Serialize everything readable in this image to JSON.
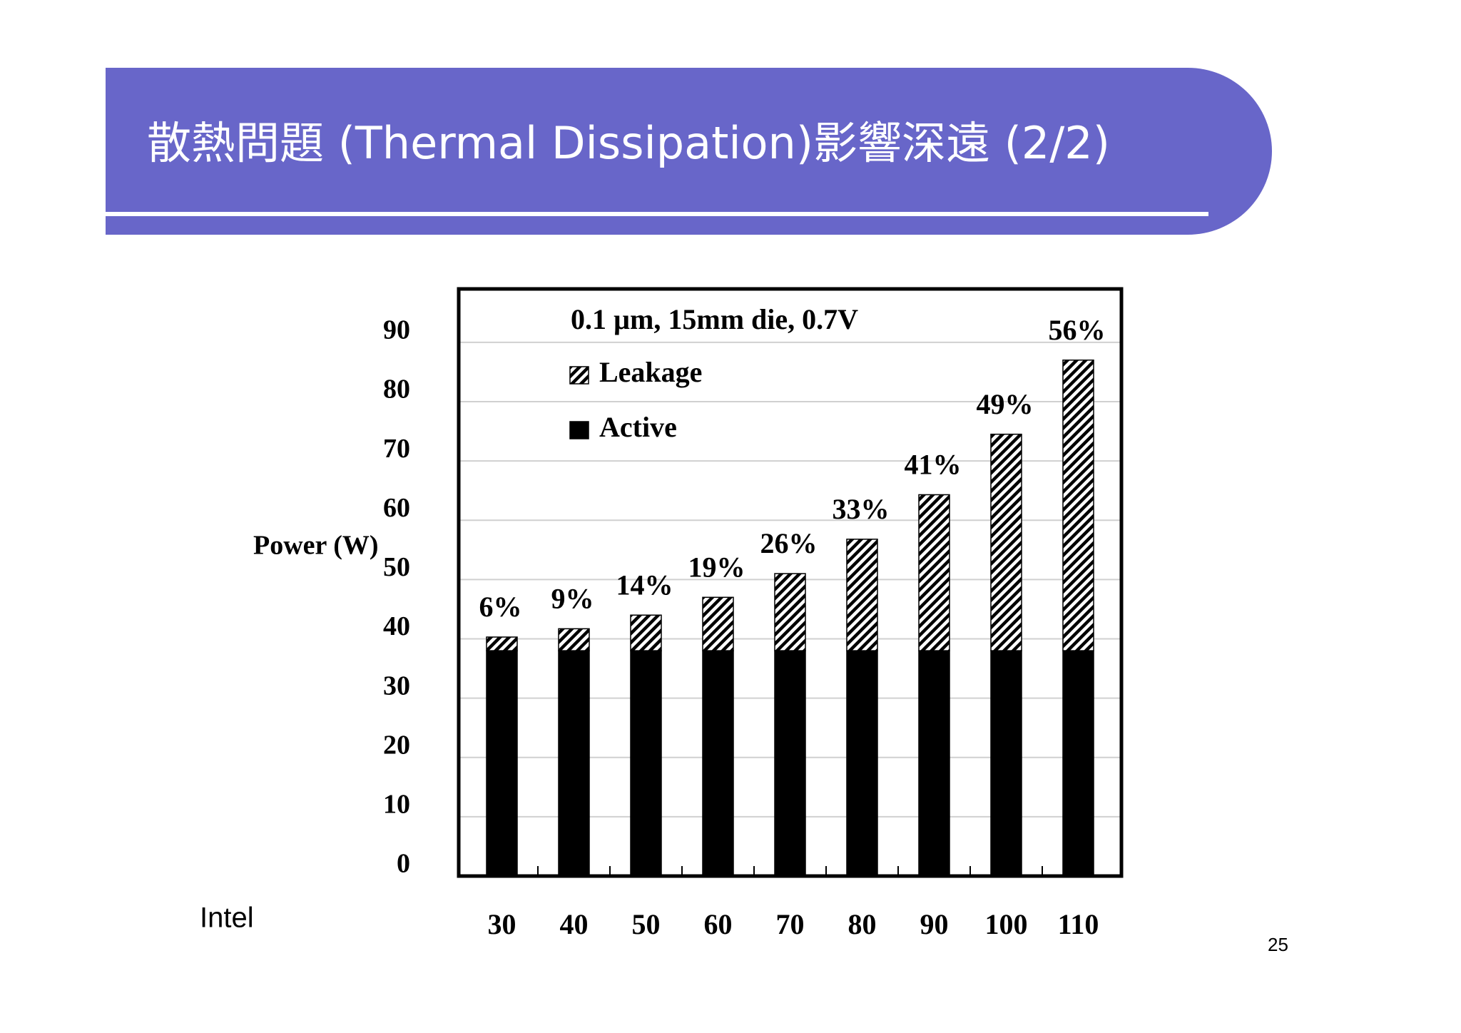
{
  "slide": {
    "title": "散熱問題 (Thermal Dissipation)影響深遠 (2/2)",
    "source": "Intel",
    "page_number": "25"
  },
  "chart_data": {
    "type": "stacked-bar",
    "title": "0.1 µm, 15mm die, 0.7V",
    "y_label": "Power (W)",
    "categories": [
      30,
      40,
      50,
      60,
      70,
      80,
      90,
      100,
      110
    ],
    "series": [
      {
        "name": "Active",
        "color": "#000000",
        "pattern": "solid",
        "values": [
          38,
          38,
          38,
          38,
          38,
          38,
          38,
          38,
          38
        ]
      },
      {
        "name": "Leakage",
        "color": "#000000",
        "pattern": "hatch",
        "values": [
          2.3,
          3.7,
          6,
          9,
          13,
          18.8,
          26.3,
          36.5,
          49
        ]
      }
    ],
    "share_labels": [
      "6%",
      "9%",
      "14%",
      "19%",
      "26%",
      "33%",
      "41%",
      "49%",
      "56%"
    ],
    "ylim": [
      0,
      99
    ],
    "yticks": [
      0,
      10,
      20,
      30,
      40,
      50,
      60,
      70,
      80,
      90
    ],
    "grid": true
  }
}
